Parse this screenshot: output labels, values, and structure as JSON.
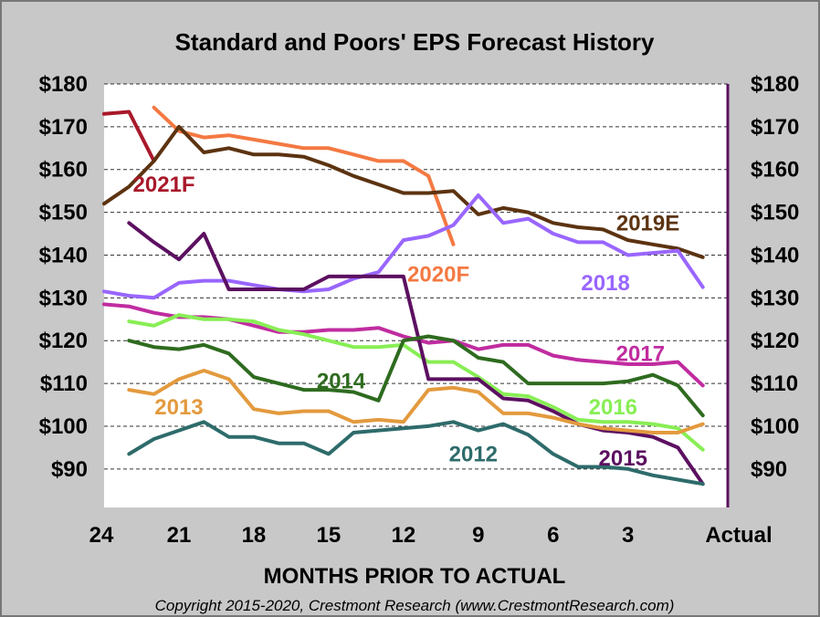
{
  "chart_data": {
    "type": "line",
    "title": "Standard and Poors' EPS Forecast History",
    "xlabel": "MONTHS PRIOR TO ACTUAL",
    "ylabel": "",
    "copyright": "Copyright 2015-2020, Crestmont Research (www.CrestmontResearch.com)",
    "x_ticks": [
      {
        "x": 24,
        "label": "24"
      },
      {
        "x": 21,
        "label": "21"
      },
      {
        "x": 18,
        "label": "18"
      },
      {
        "x": 15,
        "label": "15"
      },
      {
        "x": 12,
        "label": "12"
      },
      {
        "x": 9,
        "label": "9"
      },
      {
        "x": 6,
        "label": "6"
      },
      {
        "x": 3,
        "label": "3"
      },
      {
        "x": 0,
        "label": "Actual"
      }
    ],
    "y_ticks": [
      {
        "v": 180,
        "label": "$180"
      },
      {
        "v": 170,
        "label": "$170"
      },
      {
        "v": 160,
        "label": "$160"
      },
      {
        "v": 150,
        "label": "$150"
      },
      {
        "v": 140,
        "label": "$140"
      },
      {
        "v": 130,
        "label": "$130"
      },
      {
        "v": 120,
        "label": "$120"
      },
      {
        "v": 110,
        "label": "$110"
      },
      {
        "v": 100,
        "label": "$100"
      },
      {
        "v": 90,
        "label": "$90"
      }
    ],
    "xlim": [
      24,
      -1
    ],
    "ylim": [
      81,
      180
    ],
    "gridlines": "dashed",
    "series": [
      {
        "name": "2021F",
        "color": "#a8192a",
        "x": [
          24,
          23,
          22
        ],
        "y": [
          173,
          173.5,
          162
        ]
      },
      {
        "name": "2020F",
        "color": "#f47942",
        "x": [
          22,
          21,
          20,
          19,
          18,
          17,
          16,
          15,
          14,
          13,
          12,
          11,
          10
        ],
        "y": [
          174.5,
          169,
          167.5,
          168,
          167,
          166,
          165,
          165,
          163.5,
          162,
          162,
          158.5,
          142.5
        ]
      },
      {
        "name": "2019E",
        "color": "#5c3310",
        "x": [
          24,
          23,
          22,
          21,
          20,
          19,
          18,
          17,
          16,
          15,
          14,
          13,
          12,
          11,
          10,
          9,
          8,
          7,
          6,
          5,
          4,
          3,
          2,
          1,
          0
        ],
        "y": [
          152,
          156,
          162,
          170,
          164,
          165,
          163.5,
          163.5,
          163,
          161,
          158.5,
          156.5,
          154.5,
          154.5,
          155,
          149.5,
          151,
          150,
          147.5,
          146.5,
          146,
          143.5,
          142.5,
          141.5,
          139.5
        ]
      },
      {
        "name": "2018",
        "color": "#9966ff",
        "x": [
          24,
          23,
          22,
          21,
          20,
          19,
          18,
          17,
          16,
          15,
          14,
          13,
          12,
          11,
          10,
          9,
          8,
          7,
          6,
          5,
          4,
          3,
          2,
          1,
          0
        ],
        "y": [
          131.5,
          130.5,
          130,
          133.5,
          134,
          134,
          133,
          132,
          131.5,
          132,
          134.5,
          136,
          143.5,
          144.5,
          147,
          154,
          147.5,
          148.5,
          145,
          143,
          143,
          140,
          140.5,
          141,
          132.5
        ]
      },
      {
        "name": "2017",
        "color": "#c02ca0",
        "x": [
          24,
          23,
          22,
          21,
          20,
          19,
          18,
          17,
          16,
          15,
          14,
          13,
          12,
          11,
          10,
          9,
          8,
          7,
          6,
          5,
          4,
          3,
          2,
          1,
          0
        ],
        "y": [
          128.5,
          128,
          126.5,
          125.5,
          125.5,
          125,
          123.5,
          122,
          122,
          122.5,
          122.5,
          123,
          121,
          119.5,
          120,
          118,
          119,
          119,
          116.5,
          115.5,
          115,
          114.5,
          114.5,
          115,
          109.5
        ]
      },
      {
        "name": "2016",
        "color": "#88ee55",
        "x": [
          23,
          22,
          21,
          20,
          19,
          18,
          17,
          16,
          15,
          14,
          13,
          12,
          11,
          10,
          9,
          8,
          7,
          6,
          5,
          4,
          3,
          2,
          1,
          0
        ],
        "y": [
          124.5,
          123.5,
          126,
          125,
          125,
          124.5,
          122.5,
          121.5,
          120,
          118.5,
          118.5,
          119,
          115,
          115,
          111.5,
          107.5,
          107,
          104.5,
          101.5,
          101,
          101,
          100.5,
          99.5,
          94.5
        ]
      },
      {
        "name": "2015",
        "color": "#5c1060",
        "x": [
          23,
          22,
          21,
          20,
          19,
          18,
          17,
          16,
          15,
          14,
          13,
          12,
          11,
          10,
          9,
          8,
          7,
          6,
          5,
          4,
          3,
          2,
          1,
          0
        ],
        "y": [
          147.5,
          143,
          139,
          145,
          132,
          132,
          132,
          132,
          135,
          135,
          135,
          135,
          111,
          111,
          111,
          106.5,
          106,
          103.5,
          100.5,
          99,
          98.5,
          97.5,
          95,
          86.5
        ]
      },
      {
        "name": "2014",
        "color": "#2e6b1f",
        "x": [
          23,
          22,
          21,
          20,
          19,
          18,
          17,
          16,
          15,
          14,
          13,
          12,
          11,
          10,
          9,
          8,
          7,
          6,
          5,
          4,
          3,
          2,
          1,
          0
        ],
        "y": [
          120,
          118.5,
          118,
          119,
          117,
          111.5,
          110,
          108.5,
          108.5,
          108,
          106,
          120,
          121,
          120,
          116,
          115,
          110,
          110,
          110,
          110,
          110.5,
          112,
          109.5,
          102.5
        ]
      },
      {
        "name": "2013",
        "color": "#e39a3e",
        "x": [
          23,
          22,
          21,
          20,
          19,
          18,
          17,
          16,
          15,
          14,
          13,
          12,
          11,
          10,
          9,
          8,
          7,
          6,
          5,
          4,
          3,
          2,
          1,
          0
        ],
        "y": [
          108.5,
          107.5,
          111,
          113,
          111,
          104,
          103,
          103.5,
          103.5,
          101,
          101.5,
          101,
          108.5,
          109,
          108,
          103,
          103,
          102,
          100.5,
          99.5,
          99,
          98.5,
          98.5,
          100.5
        ]
      },
      {
        "name": "2012",
        "color": "#2e6b6b",
        "x": [
          23,
          22,
          21,
          20,
          19,
          18,
          17,
          16,
          15,
          14,
          13,
          12,
          11,
          10,
          9,
          8,
          7,
          6,
          5,
          4,
          3,
          2,
          1,
          0
        ],
        "y": [
          93.5,
          97,
          99,
          101,
          97.5,
          97.5,
          96,
          96,
          93.5,
          98.5,
          99,
          99.5,
          100,
          101,
          99,
          100.5,
          98,
          93.5,
          90.5,
          90.5,
          90,
          88.5,
          87.5,
          86.5
        ]
      }
    ],
    "annotations": [
      {
        "text": "2021F",
        "series": "2021F",
        "x": 21.6,
        "y": 156.5
      },
      {
        "text": "2020F",
        "series": "2020F",
        "x": 10.6,
        "y": 135.5
      },
      {
        "text": "2019E",
        "series": "2019E",
        "x": 2.2,
        "y": 147.5
      },
      {
        "text": "2018",
        "series": "2018",
        "x": 3.9,
        "y": 133.5
      },
      {
        "text": "2017",
        "series": "2017",
        "x": 2.5,
        "y": 117
      },
      {
        "text": "2016",
        "series": "2016",
        "x": 3.6,
        "y": 104.5
      },
      {
        "text": "2015",
        "series": "2015",
        "x": 3.2,
        "y": 92.5
      },
      {
        "text": "2014",
        "series": "2014",
        "x": 14.5,
        "y": 110.5
      },
      {
        "text": "2013",
        "series": "2013",
        "x": 21.0,
        "y": 104.5
      },
      {
        "text": "2012",
        "series": "2012",
        "x": 9.2,
        "y": 93.5
      }
    ]
  }
}
